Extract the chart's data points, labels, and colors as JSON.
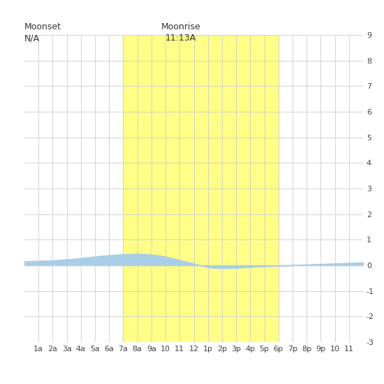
{
  "title_moonset": "Moonset",
  "title_moonset_val": "N/A",
  "title_moonrise": "Moonrise",
  "title_moonrise_val": "11:13A",
  "moonrise_x": 7.0,
  "moonset_x": 18.0,
  "ylim": [
    -3,
    9
  ],
  "yticks": [
    -3,
    -2,
    -1,
    0,
    1,
    2,
    3,
    4,
    5,
    6,
    7,
    8,
    9
  ],
  "xtick_labels": [
    "1a",
    "2a",
    "3a",
    "4a",
    "5a",
    "6a",
    "7a",
    "8a",
    "9a",
    "10",
    "11",
    "12",
    "1p",
    "2p",
    "3p",
    "4p",
    "5p",
    "6p",
    "7p",
    "8p",
    "9p",
    "10",
    "11"
  ],
  "xtick_positions": [
    1,
    2,
    3,
    4,
    5,
    6,
    7,
    8,
    9,
    10,
    11,
    12,
    13,
    14,
    15,
    16,
    17,
    18,
    19,
    20,
    21,
    22,
    23
  ],
  "tide_color": "#aacde8",
  "moon_color": "#ffff88",
  "bg_color": "#ffffff",
  "grid_color": "#cccccc",
  "tide_x": [
    0.0,
    0.5,
    1.0,
    1.5,
    2.0,
    2.5,
    3.0,
    3.5,
    4.0,
    4.5,
    5.0,
    5.5,
    6.0,
    6.5,
    7.0,
    7.5,
    8.0,
    8.5,
    9.0,
    9.5,
    10.0,
    10.5,
    11.0,
    11.5,
    12.0,
    12.5,
    13.0,
    13.5,
    14.0,
    14.5,
    15.0,
    15.5,
    16.0,
    16.5,
    17.0,
    17.5,
    18.0,
    18.5,
    19.0,
    19.5,
    20.0,
    20.5,
    21.0,
    21.5,
    22.0,
    22.5,
    23.0,
    23.5,
    24.0
  ],
  "tide_y": [
    0.14,
    0.15,
    0.16,
    0.17,
    0.18,
    0.2,
    0.22,
    0.24,
    0.27,
    0.3,
    0.33,
    0.36,
    0.38,
    0.4,
    0.42,
    0.43,
    0.44,
    0.43,
    0.41,
    0.38,
    0.33,
    0.27,
    0.2,
    0.13,
    0.06,
    -0.01,
    -0.07,
    -0.1,
    -0.11,
    -0.11,
    -0.1,
    -0.08,
    -0.07,
    -0.05,
    -0.04,
    -0.03,
    -0.02,
    -0.01,
    0.0,
    0.01,
    0.02,
    0.03,
    0.04,
    0.05,
    0.06,
    0.07,
    0.08,
    0.09,
    0.1
  ],
  "xlim": [
    0,
    24
  ],
  "figsize": [
    5.5,
    5.5
  ],
  "dpi": 100
}
